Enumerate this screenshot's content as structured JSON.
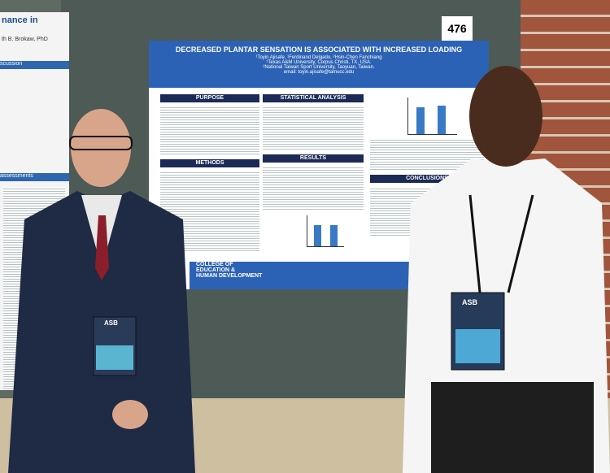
{
  "sign": {
    "number": "476"
  },
  "poster": {
    "title": "DECREASED PLANTAR SENSATION IS ASSOCIATED WITH INCREASED LOADING",
    "authors": "¹Toyin Ajisafe, ¹Ferdinand Delgado, ²Hsin-Chen Fanchiang",
    "affiliation_1": "¹Texas A&M University, Corpus Christi, TX, USA.",
    "affiliation_2": "²National Taiwan Sport University, Taoyuan, Taiwan.",
    "email": "email: toyin.ajisafe@tamucc.edu",
    "sections": [
      "PURPOSE",
      "STATISTICAL ANALYSIS",
      "METHODS",
      "RESULTS",
      "CONCLUSIONS"
    ],
    "footer": [
      "COLLEGE OF",
      "EDUCATION &",
      "HUMAN DEVELOPMENT"
    ]
  },
  "left_poster": {
    "title": "nance in",
    "author": "th B. Brokaw, PhD",
    "headings": [
      "scussion",
      "assessments"
    ]
  },
  "badges": [
    "ASB",
    "ASB"
  ]
}
